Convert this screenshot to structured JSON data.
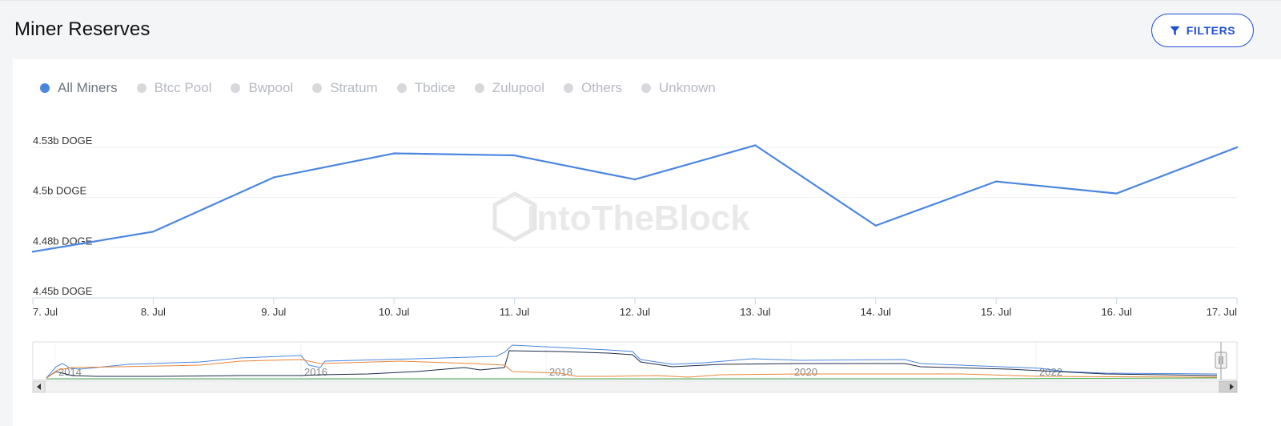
{
  "header": {
    "title": "Miner Reserves",
    "filters_label": "FILTERS"
  },
  "legend": [
    {
      "label": "All Miners",
      "color": "#4a86e0",
      "active": true
    },
    {
      "label": "Btcc Pool",
      "color": "#d6d8dc",
      "active": false
    },
    {
      "label": "Bwpool",
      "color": "#d6d8dc",
      "active": false
    },
    {
      "label": "Stratum",
      "color": "#d6d8dc",
      "active": false
    },
    {
      "label": "Tbdice",
      "color": "#d6d8dc",
      "active": false
    },
    {
      "label": "Zulupool",
      "color": "#d6d8dc",
      "active": false
    },
    {
      "label": "Others",
      "color": "#d6d8dc",
      "active": false
    },
    {
      "label": "Unknown",
      "color": "#d6d8dc",
      "active": false
    }
  ],
  "watermark": "IntoTheBlock",
  "chart_data": {
    "type": "line",
    "title": "Miner Reserves",
    "unit": "b DOGE",
    "categories": [
      "7. Jul",
      "8. Jul",
      "9. Jul",
      "10. Jul",
      "11. Jul",
      "12. Jul",
      "13. Jul",
      "14. Jul",
      "15. Jul",
      "16. Jul",
      "17. Jul"
    ],
    "series": [
      {
        "name": "All Miners",
        "color": "#4a86e0",
        "values": [
          4.473,
          4.483,
          4.51,
          4.522,
          4.521,
          4.509,
          4.526,
          4.486,
          4.508,
          4.502,
          4.525
        ]
      }
    ],
    "yticks": [
      {
        "value": 4.45,
        "label": "4.45b DOGE"
      },
      {
        "value": 4.475,
        "label": "4.48b DOGE"
      },
      {
        "value": 4.5,
        "label": "4.5b DOGE"
      },
      {
        "value": 4.525,
        "label": "4.53b DOGE"
      }
    ],
    "ylim": [
      4.45,
      4.525
    ],
    "grid": true,
    "navigator": {
      "x_labels": [
        "2014",
        "2016",
        "2018",
        "2020",
        "2022"
      ],
      "series_colors": [
        "#4a86e0",
        "#1c2b4a",
        "#e8863a",
        "#4caf50"
      ]
    }
  }
}
